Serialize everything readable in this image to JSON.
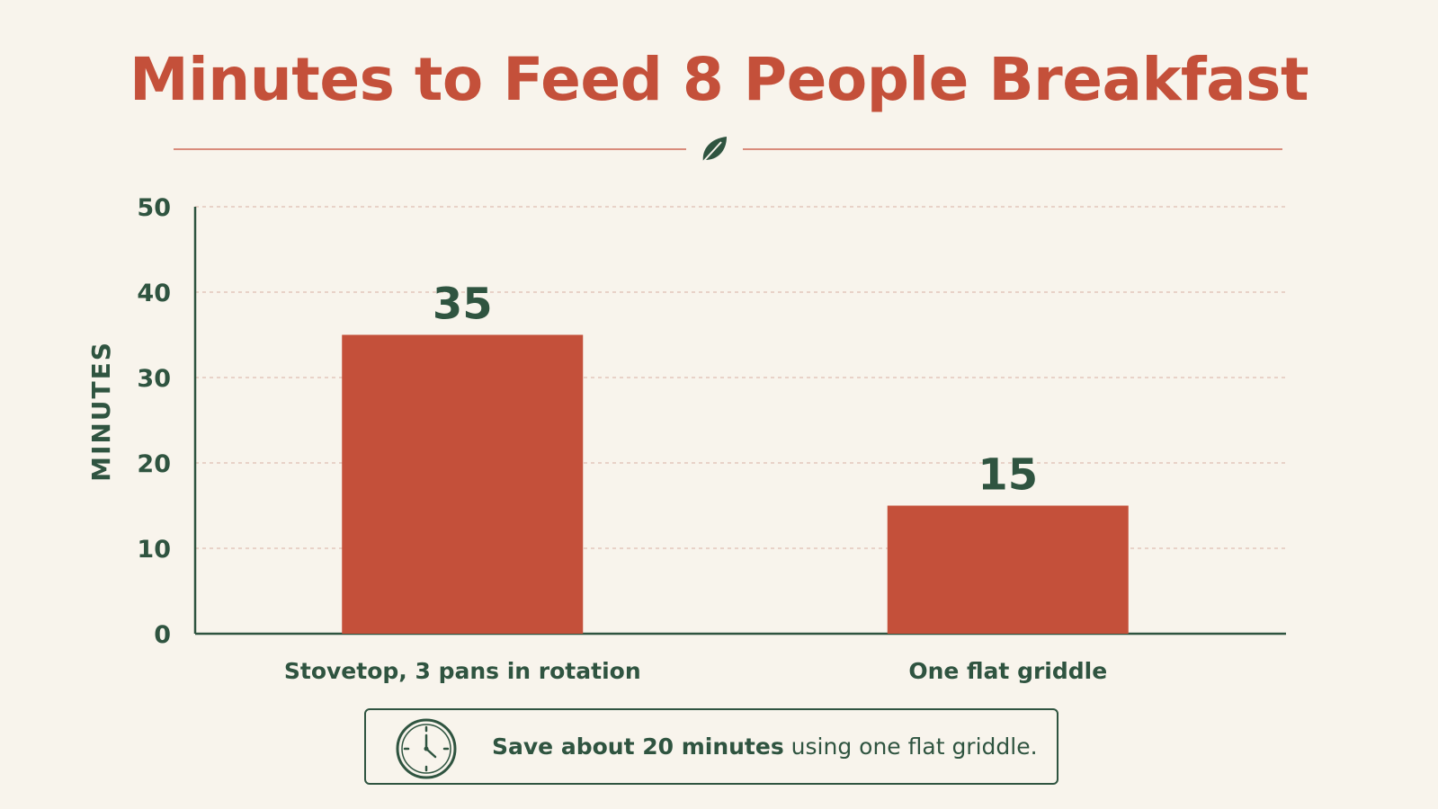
{
  "chart_data": {
    "type": "bar",
    "title": "Minutes to Feed 8 People Breakfast",
    "ylabel": "MINUTES",
    "xlabel": "",
    "categories": [
      "Stovetop, 3 pans in rotation",
      "One flat griddle"
    ],
    "values": [
      35,
      15
    ],
    "ylim": [
      0,
      50
    ],
    "yticks": [
      0,
      10,
      20,
      30,
      40,
      50
    ],
    "grid": true,
    "legend": "none"
  },
  "callout": {
    "bold_text": "Save about 20 minutes",
    "rest_text": " using one flat griddle."
  },
  "colors": {
    "bar": "#c4503a",
    "title": "#c4503a",
    "text": "#2f5440",
    "axis": "#2f5440",
    "grid": "#e2c7bc",
    "background": "#f8f4ec"
  },
  "icons": [
    "leaf-icon",
    "clock-icon"
  ]
}
